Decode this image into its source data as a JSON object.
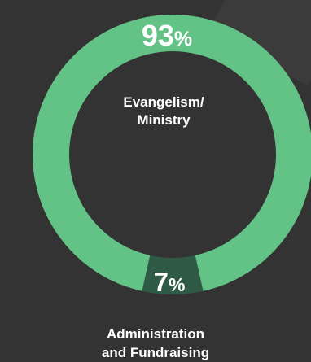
{
  "chart_data": {
    "type": "pie",
    "categories": [
      "Evangelism/ Ministry",
      "Administration and Fundraising"
    ],
    "values": [
      93,
      7
    ],
    "value_labels": [
      "93",
      "7"
    ],
    "percent_sign": "%",
    "center_label_lines": [
      "Evangelism/",
      "Ministry"
    ],
    "bottom_label_lines": [
      "Administration",
      "and Fundraising"
    ],
    "colors": {
      "major": "#63c386",
      "minor": "#2f5a45",
      "background": "#333333",
      "text": "#ffffff"
    }
  }
}
